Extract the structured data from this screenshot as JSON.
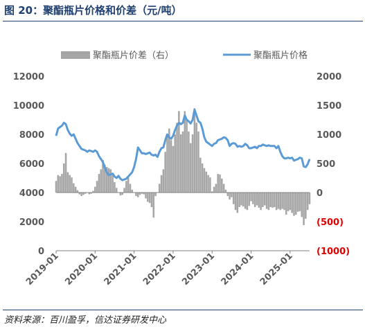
{
  "title": "图 20：聚酯瓶片价格和价差（元/吨）",
  "source": "资料来源：百川盈孚，信达证券研发中心",
  "colors": {
    "line": "#5b9bd5",
    "bar": "#a6a6a6",
    "negative_tick": "#e00000",
    "title": "#1f3f6e"
  },
  "chart_data": {
    "type": "bar+line",
    "title": "",
    "legend": {
      "placement": "top",
      "entries": [
        "聚酯瓶片价差（右）",
        "聚酯瓶片价格"
      ]
    },
    "x_ticks": [
      "2019-01",
      "2020-01",
      "2021-01",
      "2022-01",
      "2023-01",
      "2024-01",
      "2025-01"
    ],
    "x_range": [
      2019.0,
      2025.5
    ],
    "y_left": {
      "range": [
        0,
        12000
      ],
      "ticks": [
        "0",
        "2000",
        "4000",
        "6000",
        "8000",
        "10000",
        "12000"
      ]
    },
    "y_right": {
      "range": [
        -1000,
        2000
      ],
      "ticks": [
        "(1000)",
        "(500)",
        "0",
        "500",
        "1000",
        "1500",
        "2000"
      ]
    },
    "grid": false,
    "series": [
      {
        "name": "聚酯瓶片价格",
        "kind": "line",
        "axis": "left",
        "x": [
          2019.0,
          2019.05,
          2019.1,
          2019.15,
          2019.2,
          2019.25,
          2019.3,
          2019.35,
          2019.4,
          2019.45,
          2019.5,
          2019.55,
          2019.6,
          2019.65,
          2019.7,
          2019.75,
          2019.8,
          2019.85,
          2019.9,
          2019.95,
          2020.0,
          2020.05,
          2020.1,
          2020.15,
          2020.2,
          2020.25,
          2020.3,
          2020.35,
          2020.4,
          2020.45,
          2020.5,
          2020.55,
          2020.6,
          2020.65,
          2020.7,
          2020.75,
          2020.8,
          2020.85,
          2020.9,
          2020.95,
          2021.0,
          2021.05,
          2021.1,
          2021.15,
          2021.2,
          2021.25,
          2021.3,
          2021.35,
          2021.4,
          2021.45,
          2021.5,
          2021.55,
          2021.6,
          2021.65,
          2021.7,
          2021.75,
          2021.8,
          2021.85,
          2021.9,
          2021.95,
          2022.0,
          2022.05,
          2022.1,
          2022.15,
          2022.2,
          2022.25,
          2022.3,
          2022.35,
          2022.4,
          2022.45,
          2022.5,
          2022.55,
          2022.6,
          2022.65,
          2022.7,
          2022.75,
          2022.8,
          2022.85,
          2022.9,
          2022.95,
          2023.0,
          2023.05,
          2023.1,
          2023.15,
          2023.2,
          2023.25,
          2023.3,
          2023.35,
          2023.4,
          2023.45,
          2023.5,
          2023.55,
          2023.6,
          2023.65,
          2023.7,
          2023.75,
          2023.8,
          2023.85,
          2023.9,
          2023.95,
          2024.0,
          2024.05,
          2024.1,
          2024.15,
          2024.2,
          2024.25,
          2024.3,
          2024.35,
          2024.4,
          2024.45,
          2024.5,
          2024.55,
          2024.6,
          2024.65,
          2024.7,
          2024.75,
          2024.8,
          2024.85,
          2024.9,
          2024.95,
          2025.0,
          2025.05,
          2025.1,
          2025.15,
          2025.2,
          2025.25,
          2025.3,
          2025.35,
          2025.4,
          2025.45,
          2025.5
        ],
        "values": [
          7900,
          8400,
          8500,
          8600,
          8800,
          8700,
          8300,
          8050,
          7900,
          8000,
          7700,
          7400,
          7200,
          7000,
          6950,
          6900,
          6800,
          6900,
          6850,
          6800,
          6900,
          6800,
          6500,
          6300,
          6100,
          5700,
          5400,
          5200,
          5250,
          5300,
          5100,
          5000,
          5150,
          4950,
          4850,
          4900,
          4950,
          5100,
          5250,
          5400,
          5750,
          6300,
          7100,
          6900,
          6700,
          6700,
          6650,
          6700,
          6750,
          6600,
          6550,
          6600,
          6450,
          6800,
          7050,
          7100,
          7600,
          8000,
          7800,
          7700,
          7900,
          8300,
          8600,
          8800,
          8700,
          8800,
          9300,
          9000,
          8900,
          8750,
          9000,
          9700,
          9300,
          8900,
          8800,
          8400,
          7800,
          7500,
          7400,
          7300,
          7200,
          7350,
          7400,
          7600,
          7650,
          7700,
          7800,
          7750,
          7600,
          7200,
          7350,
          7400,
          7350,
          7150,
          7200,
          7150,
          7200,
          7350,
          7250,
          7050,
          7050,
          7100,
          7150,
          7050,
          7200,
          7200,
          7300,
          7250,
          7200,
          7250,
          7200,
          7200,
          7200,
          7050,
          7200,
          6800,
          6500,
          6350,
          6350,
          6400,
          6350,
          6400,
          6200,
          6250,
          6300,
          6400,
          6350,
          5800,
          5750,
          5950,
          6300
        ]
      },
      {
        "name": "聚酯瓶片价差（右）",
        "kind": "bar",
        "axis": "right",
        "x": [
          2019.0,
          2019.05,
          2019.1,
          2019.15,
          2019.2,
          2019.25,
          2019.3,
          2019.35,
          2019.4,
          2019.45,
          2019.5,
          2019.55,
          2019.6,
          2019.65,
          2019.7,
          2019.75,
          2019.8,
          2019.85,
          2019.9,
          2019.95,
          2020.0,
          2020.05,
          2020.1,
          2020.15,
          2020.2,
          2020.25,
          2020.3,
          2020.35,
          2020.4,
          2020.45,
          2020.5,
          2020.55,
          2020.6,
          2020.65,
          2020.7,
          2020.75,
          2020.8,
          2020.85,
          2020.9,
          2020.95,
          2021.0,
          2021.05,
          2021.1,
          2021.15,
          2021.2,
          2021.25,
          2021.3,
          2021.35,
          2021.4,
          2021.45,
          2021.5,
          2021.55,
          2021.6,
          2021.65,
          2021.7,
          2021.75,
          2021.8,
          2021.85,
          2021.9,
          2021.95,
          2022.0,
          2022.05,
          2022.1,
          2022.15,
          2022.2,
          2022.25,
          2022.3,
          2022.35,
          2022.4,
          2022.45,
          2022.5,
          2022.55,
          2022.6,
          2022.65,
          2022.7,
          2022.75,
          2022.8,
          2022.85,
          2022.9,
          2022.95,
          2023.0,
          2023.05,
          2023.1,
          2023.15,
          2023.2,
          2023.25,
          2023.3,
          2023.35,
          2023.4,
          2023.45,
          2023.5,
          2023.55,
          2023.6,
          2023.65,
          2023.7,
          2023.75,
          2023.8,
          2023.85,
          2023.9,
          2023.95,
          2024.0,
          2024.05,
          2024.1,
          2024.15,
          2024.2,
          2024.25,
          2024.3,
          2024.35,
          2024.4,
          2024.45,
          2024.5,
          2024.55,
          2024.6,
          2024.65,
          2024.7,
          2024.75,
          2024.8,
          2024.85,
          2024.9,
          2024.95,
          2025.0,
          2025.05,
          2025.1,
          2025.15,
          2025.2,
          2025.25,
          2025.3,
          2025.35,
          2025.4,
          2025.45,
          2025.5
        ],
        "values": [
          200,
          300,
          280,
          320,
          500,
          680,
          350,
          300,
          260,
          160,
          100,
          40,
          -30,
          -60,
          -40,
          -20,
          0,
          -30,
          -20,
          30,
          100,
          200,
          320,
          400,
          560,
          480,
          440,
          420,
          400,
          300,
          180,
          80,
          0,
          -50,
          -40,
          80,
          200,
          260,
          150,
          50,
          0,
          -60,
          -80,
          -40,
          -20,
          -30,
          -100,
          -160,
          -180,
          -250,
          -430,
          -60,
          0,
          150,
          300,
          400,
          700,
          1000,
          1100,
          900,
          800,
          1000,
          1200,
          1400,
          1000,
          1050,
          1400,
          1250,
          1050,
          850,
          1000,
          1450,
          1200,
          1050,
          600,
          500,
          420,
          360,
          300,
          260,
          20,
          100,
          150,
          320,
          310,
          240,
          150,
          50,
          -60,
          -120,
          -80,
          -200,
          -300,
          -350,
          -250,
          -220,
          -240,
          -280,
          -300,
          -230,
          -150,
          -200,
          -250,
          -220,
          -260,
          -300,
          -250,
          -220,
          -280,
          -300,
          -250,
          -260,
          -250,
          -300,
          -280,
          -300,
          -280,
          -300,
          -380,
          -320,
          -300,
          -350,
          -400,
          -380,
          -330,
          -320,
          -420,
          -560,
          -450,
          -300,
          -200
        ]
      }
    ]
  }
}
